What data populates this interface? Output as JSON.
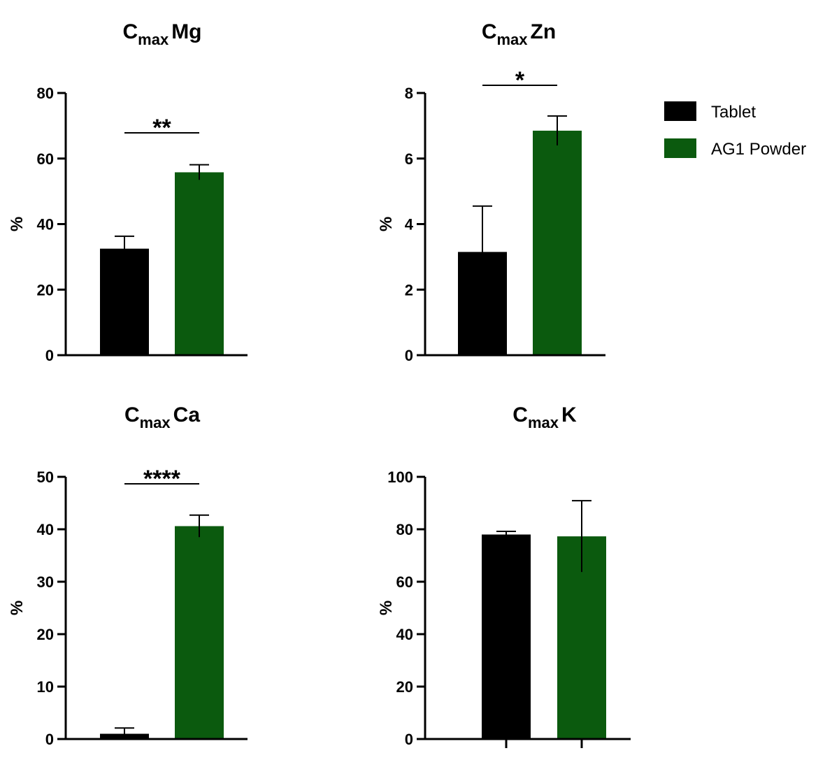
{
  "chart_data": [
    {
      "type": "bar",
      "title": {
        "prefix": "C",
        "subscript": "max",
        "suffix": "Mg"
      },
      "ylabel": "%",
      "categories": [
        "Tablet",
        "AG1 Powder"
      ],
      "values": [
        32.5,
        55.8
      ],
      "error": [
        3.8,
        2.3
      ],
      "ylim": [
        0,
        80
      ],
      "yticks": [
        0,
        20,
        40,
        60,
        80
      ],
      "yticklabels": [
        "0",
        "20",
        "40",
        "60",
        "80"
      ],
      "significance": "**"
    },
    {
      "type": "bar",
      "title": {
        "prefix": "C",
        "subscript": "max",
        "suffix": "Zn"
      },
      "ylabel": "%",
      "categories": [
        "Tablet",
        "AG1 Powder"
      ],
      "values": [
        3.15,
        6.85
      ],
      "error": [
        1.4,
        0.45
      ],
      "ylim": [
        0,
        8
      ],
      "yticks": [
        0,
        2,
        4,
        6,
        8
      ],
      "yticklabels": [
        "0",
        "2",
        "4",
        "6",
        "8"
      ],
      "significance": "*"
    },
    {
      "type": "bar",
      "title": {
        "prefix": "C",
        "subscript": "max",
        "suffix": "Ca"
      },
      "ylabel": "%",
      "categories": [
        "Tablet",
        "AG1 Powder"
      ],
      "values": [
        1.0,
        40.6
      ],
      "error": [
        1.1,
        2.1
      ],
      "ylim": [
        0,
        50
      ],
      "yticks": [
        0,
        10,
        20,
        30,
        40,
        50
      ],
      "yticklabels": [
        "0",
        "10",
        "20",
        "30",
        "40",
        "50"
      ],
      "significance": "****"
    },
    {
      "type": "bar",
      "title": {
        "prefix": "C",
        "subscript": "max",
        "suffix": "K"
      },
      "ylabel": "%",
      "categories": [
        "Tablet",
        "AG1 Powder"
      ],
      "values": [
        78.0,
        77.3
      ],
      "error": [
        1.2,
        13.6
      ],
      "ylim": [
        0,
        100
      ],
      "yticks": [
        0,
        20,
        40,
        60,
        80,
        100
      ],
      "yticklabels": [
        "0",
        "20",
        "40",
        "60",
        "80",
        "100"
      ],
      "significance": ""
    }
  ],
  "legend": {
    "placement": "top-right",
    "items": [
      {
        "label": "Tablet",
        "color": "#000000"
      },
      {
        "label": "AG1 Powder",
        "color": "#0b5a0e"
      }
    ]
  },
  "colors": {
    "tablet": "#000000",
    "powder": "#0b5a0e",
    "axis": "#000000"
  }
}
